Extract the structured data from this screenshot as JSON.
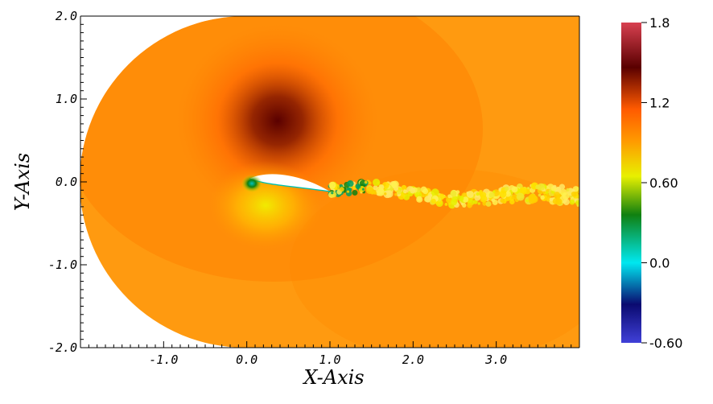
{
  "chart_data": {
    "type": "heatmap",
    "description_visible": "pseudocolor field around an airfoil with turbulent wake",
    "xlabel": "X-Axis",
    "ylabel": "Y-Axis",
    "xlim": [
      -2.0,
      4.0
    ],
    "ylim": [
      -2.0,
      2.0
    ],
    "x_ticks": [
      {
        "value": -1.0,
        "label": "-1.0"
      },
      {
        "value": 0.0,
        "label": "0.0"
      },
      {
        "value": 1.0,
        "label": "1.0"
      },
      {
        "value": 2.0,
        "label": "2.0"
      },
      {
        "value": 3.0,
        "label": "3.0"
      }
    ],
    "y_ticks": [
      {
        "value": 2.0,
        "label": "2.0"
      },
      {
        "value": 1.0,
        "label": "1.0"
      },
      {
        "value": 0.0,
        "label": "0.0"
      },
      {
        "value": -1.0,
        "label": "-1.0"
      },
      {
        "value": -2.0,
        "label": "-2.0"
      }
    ],
    "colorbar": {
      "range": [
        -0.6,
        1.8
      ],
      "ticks": [
        {
          "value": 1.8,
          "label": "1.8"
        },
        {
          "value": 1.2,
          "label": "1.2"
        },
        {
          "value": 0.6,
          "label": "0.60"
        },
        {
          "value": 0.0,
          "label": "0.0"
        },
        {
          "value": -0.6,
          "label": "-0.60"
        }
      ],
      "colors": [
        "#4040d8",
        "#0a0a70",
        "#00e8f0",
        "#108010",
        "#e8f000",
        "#ff9a00",
        "#ff5a00",
        "#5a0000",
        "#d84050"
      ]
    },
    "field": {
      "freestream_value": 1.12,
      "airfoil": {
        "leading_edge": [
          0.0,
          0.0
        ],
        "trailing_edge": [
          1.0,
          -0.1
        ]
      },
      "wake_value_range": [
        0.4,
        0.9
      ]
    },
    "grid": false
  }
}
